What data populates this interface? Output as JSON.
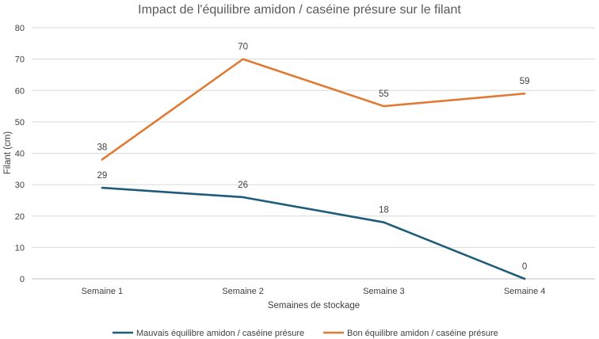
{
  "chart_data": {
    "type": "line",
    "title": "Impact de l'équilibre amidon / caséine présure sur le filant",
    "xlabel": "Semaines de stockage",
    "ylabel": "Filant (cm)",
    "categories": [
      "Semaine 1",
      "Semaine 2",
      "Semaine 3",
      "Semaine 4"
    ],
    "ylim": [
      0,
      80
    ],
    "yticks": [
      0,
      10,
      20,
      30,
      40,
      50,
      60,
      70,
      80
    ],
    "grid": true,
    "legend_position": "bottom",
    "series": [
      {
        "name": "Mauvais équilibre amidon / caséine présure",
        "color": "#1f5c7a",
        "values": [
          29,
          26,
          18,
          0
        ]
      },
      {
        "name": "Bon équilibre amidon / caséine présure",
        "color": "#e07a34",
        "values": [
          38,
          70,
          55,
          59
        ]
      }
    ]
  }
}
